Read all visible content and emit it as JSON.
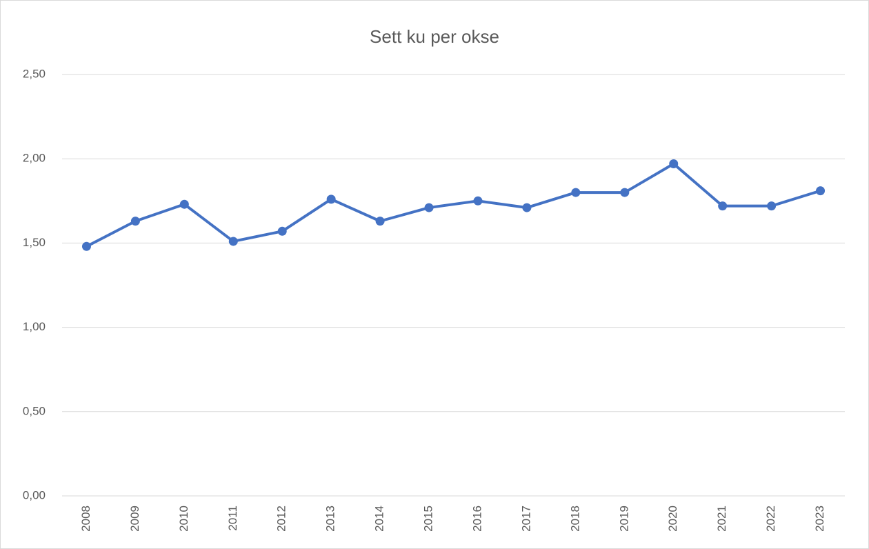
{
  "chart_data": {
    "type": "line",
    "title": "Sett ku per okse",
    "categories": [
      "2008",
      "2009",
      "2010",
      "2011",
      "2012",
      "2013",
      "2014",
      "2015",
      "2016",
      "2017",
      "2018",
      "2019",
      "2020",
      "2021",
      "2022",
      "2023"
    ],
    "series": [
      {
        "name": "Sett ku per okse",
        "color": "#4472c4",
        "values": [
          1.48,
          1.63,
          1.73,
          1.51,
          1.57,
          1.76,
          1.63,
          1.71,
          1.75,
          1.71,
          1.8,
          1.8,
          1.97,
          1.72,
          1.72,
          1.81
        ]
      }
    ],
    "ylim": [
      0,
      2.5
    ],
    "yticks": [
      {
        "value": 0,
        "label": "0,00"
      },
      {
        "value": 0.5,
        "label": "0,50"
      },
      {
        "value": 1,
        "label": "1,00"
      },
      {
        "value": 1.5,
        "label": "1,50"
      },
      {
        "value": 2,
        "label": "2,00"
      },
      {
        "value": 2.5,
        "label": "2,50"
      }
    ],
    "grid": true
  }
}
